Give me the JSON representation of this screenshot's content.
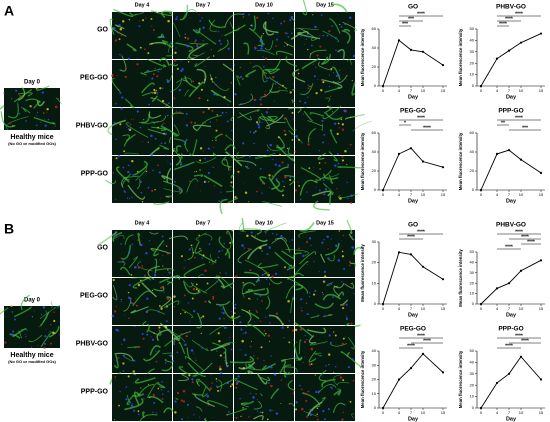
{
  "panels": [
    {
      "label": "A",
      "day0": "Day 0",
      "healthy": "Healthy mice",
      "healthy_note": "(No GO or modified GOs)",
      "days": [
        "Day 4",
        "Day 7",
        "Day 10",
        "Day 15"
      ],
      "rows": [
        "GO",
        "PEG-GO",
        "PHBV-GO",
        "PPP-GO"
      ]
    },
    {
      "label": "B",
      "day0": "Day 0",
      "healthy": "Healthy mice",
      "healthy_note": "(No GO or modified GOs)",
      "days": [
        "Day 4",
        "Day 7",
        "Day 10",
        "Day 15"
      ],
      "rows": [
        "GO",
        "PEG-GO",
        "PHBV-GO",
        "PPP-GO"
      ]
    }
  ],
  "chart_data": [
    {
      "type": "line",
      "title": "GO",
      "x": [
        0,
        4,
        7,
        10,
        15
      ],
      "values": [
        0,
        48,
        38,
        36,
        22
      ],
      "xlim": [
        -1,
        16
      ],
      "xticks": [
        0,
        4,
        7,
        10,
        15
      ],
      "ylim": [
        0,
        60
      ],
      "yticks": [
        0,
        20,
        40,
        60
      ],
      "xlabel": "Day",
      "ylabel": "Mean fluorescence intensity",
      "color": "#000000",
      "annotations": [
        {
          "text": "****",
          "x": [
            4,
            15
          ]
        },
        {
          "text": "***",
          "x": [
            4,
            10
          ]
        },
        {
          "text": "***",
          "x": [
            4,
            7
          ]
        }
      ]
    },
    {
      "type": "line",
      "title": "PHBV-GO",
      "x": [
        0,
        4,
        7,
        10,
        15
      ],
      "values": [
        0,
        24,
        31,
        38,
        46
      ],
      "xlim": [
        -1,
        16
      ],
      "xticks": [
        0,
        4,
        7,
        10,
        15
      ],
      "ylim": [
        0,
        50
      ],
      "yticks": [
        0,
        10,
        20,
        30,
        40,
        50
      ],
      "xlabel": "Day",
      "ylabel": "Mean fluorescence intensity",
      "color": "#000000",
      "annotations": [
        {
          "text": "****",
          "x": [
            4,
            15
          ]
        },
        {
          "text": "****",
          "x": [
            4,
            10
          ]
        },
        {
          "text": "****",
          "x": [
            4,
            7
          ]
        }
      ]
    },
    {
      "type": "line",
      "title": "PEG-GO",
      "x": [
        0,
        4,
        7,
        10,
        15
      ],
      "values": [
        0,
        38,
        44,
        30,
        24
      ],
      "xlim": [
        -1,
        16
      ],
      "xticks": [
        0,
        4,
        7,
        10,
        15
      ],
      "ylim": [
        0,
        60
      ],
      "yticks": [
        0,
        20,
        40,
        60
      ],
      "xlabel": "Day",
      "ylabel": "Mean fluorescence intensity",
      "color": "#000000",
      "annotations": [
        {
          "text": "****",
          "x": [
            4,
            15
          ]
        },
        {
          "text": "*",
          "x": [
            4,
            7
          ]
        },
        {
          "text": "****",
          "x": [
            7,
            15
          ]
        }
      ]
    },
    {
      "type": "line",
      "title": "PPP-GO",
      "x": [
        0,
        4,
        7,
        10,
        15
      ],
      "values": [
        0,
        38,
        42,
        32,
        18
      ],
      "xlim": [
        -1,
        16
      ],
      "xticks": [
        0,
        4,
        7,
        10,
        15
      ],
      "ylim": [
        0,
        60
      ],
      "yticks": [
        0,
        20,
        40,
        60
      ],
      "xlabel": "Day",
      "ylabel": "Mean fluorescence intensity",
      "color": "#000000",
      "annotations": [
        {
          "text": "****",
          "x": [
            4,
            15
          ]
        },
        {
          "text": "**",
          "x": [
            4,
            7
          ]
        },
        {
          "text": "***",
          "x": [
            7,
            15
          ]
        }
      ]
    },
    {
      "type": "line",
      "title": "GO",
      "x": [
        0,
        4,
        7,
        10,
        15
      ],
      "values": [
        0,
        25,
        24,
        18,
        12
      ],
      "xlim": [
        -1,
        16
      ],
      "xticks": [
        0,
        4,
        7,
        10,
        15
      ],
      "ylim": [
        0,
        30
      ],
      "yticks": [
        0,
        10,
        20,
        30
      ],
      "xlabel": "Day",
      "ylabel": "Mean fluorescence intensity",
      "color": "#000000",
      "annotations": [
        {
          "text": "****",
          "x": [
            4,
            15
          ]
        },
        {
          "text": "****",
          "x": [
            4,
            10
          ]
        }
      ]
    },
    {
      "type": "line",
      "title": "PHBV-GO",
      "x": [
        0,
        4,
        7,
        10,
        15
      ],
      "values": [
        0,
        15,
        20,
        32,
        42
      ],
      "xlim": [
        -1,
        16
      ],
      "xticks": [
        0,
        4,
        7,
        10,
        15
      ],
      "ylim": [
        0,
        50
      ],
      "yticks": [
        0,
        10,
        20,
        30,
        40,
        50
      ],
      "xlabel": "Day",
      "ylabel": "Mean fluorescence intensity",
      "color": "#000000",
      "annotations": [
        {
          "text": "****",
          "x": [
            4,
            15
          ]
        },
        {
          "text": "****",
          "x": [
            7,
            15
          ]
        },
        {
          "text": "****",
          "x": [
            10,
            15
          ]
        },
        {
          "text": "****",
          "x": [
            4,
            10
          ]
        }
      ]
    },
    {
      "type": "line",
      "title": "PEG-GO",
      "x": [
        0,
        4,
        7,
        10,
        15
      ],
      "values": [
        0,
        20,
        28,
        38,
        25
      ],
      "xlim": [
        -1,
        16
      ],
      "xticks": [
        0,
        4,
        7,
        10,
        15
      ],
      "ylim": [
        0,
        40
      ],
      "yticks": [
        0,
        10,
        20,
        30,
        40
      ],
      "xlabel": "Day",
      "ylabel": "Mean fluorescence intensity",
      "color": "#000000",
      "annotations": [
        {
          "text": "****",
          "x": [
            4,
            15
          ]
        },
        {
          "text": "****",
          "x": [
            7,
            15
          ]
        },
        {
          "text": "****",
          "x": [
            4,
            10
          ]
        }
      ]
    },
    {
      "type": "line",
      "title": "PPP-GO",
      "x": [
        0,
        4,
        7,
        10,
        15
      ],
      "values": [
        0,
        22,
        30,
        45,
        25
      ],
      "xlim": [
        -1,
        16
      ],
      "xticks": [
        0,
        4,
        7,
        10,
        15
      ],
      "ylim": [
        0,
        50
      ],
      "yticks": [
        0,
        10,
        20,
        30,
        40,
        50
      ],
      "xlabel": "Day",
      "ylabel": "Mean fluorescence intensity",
      "color": "#000000",
      "annotations": [
        {
          "text": "****",
          "x": [
            4,
            15
          ]
        },
        {
          "text": "****",
          "x": [
            7,
            15
          ]
        },
        {
          "text": "****",
          "x": [
            4,
            10
          ]
        }
      ]
    }
  ]
}
